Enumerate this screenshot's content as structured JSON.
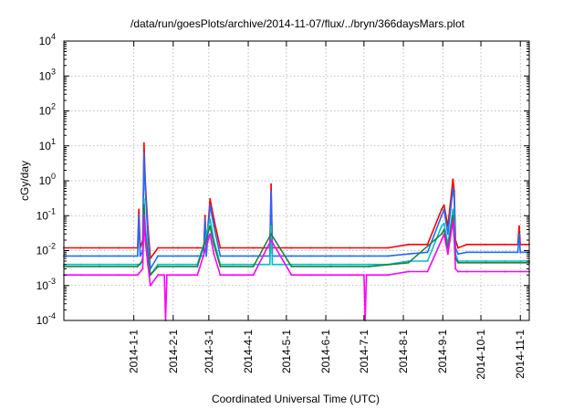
{
  "chart_data": {
    "type": "line",
    "title": "/data/run/goesPlots/archive/2014-11-07/flux/../bryn/366daysMars.plot",
    "xlabel": "Coordinated Universal Time (UTC)",
    "ylabel": "cGy/day",
    "yscale": "log",
    "ylim": [
      0.0001,
      10000
    ],
    "xlim": [
      "2013-11-07",
      "2014-11-08"
    ],
    "grid": true,
    "legend": "none",
    "y_ticks": [
      {
        "base": "10",
        "exp": "-4",
        "value": 0.0001
      },
      {
        "base": "10",
        "exp": "-3",
        "value": 0.001
      },
      {
        "base": "10",
        "exp": "-2",
        "value": 0.01
      },
      {
        "base": "10",
        "exp": "-1",
        "value": 0.1
      },
      {
        "base": "10",
        "exp": "0",
        "value": 1
      },
      {
        "base": "10",
        "exp": "1",
        "value": 10
      },
      {
        "base": "10",
        "exp": "2",
        "value": 100
      },
      {
        "base": "10",
        "exp": "3",
        "value": 1000
      },
      {
        "base": "10",
        "exp": "4",
        "value": 10000
      }
    ],
    "x_ticks": [
      "2014-1-1",
      "2014-2-1",
      "2014-3-1",
      "2014-4-1",
      "2014-5-1",
      "2014-6-1",
      "2014-7-1",
      "2014-8-1",
      "2014-9-1",
      "2014-10-1",
      "2014-11-1"
    ],
    "series": [
      {
        "color": "#ff0000",
        "x": [
          "2013-11-07",
          "2013-11-20",
          "2013-12-05",
          "2013-12-20",
          "2014-01-04",
          "2014-01-05",
          "2014-01-06",
          "2014-01-08",
          "2014-01-09",
          "2014-01-10",
          "2014-01-12",
          "2014-01-14",
          "2014-01-20",
          "2014-02-05",
          "2014-02-20",
          "2014-02-25",
          "2014-02-26",
          "2014-02-27",
          "2014-03-02",
          "2014-03-05",
          "2014-03-10",
          "2014-03-20",
          "2014-04-05",
          "2014-04-18",
          "2014-04-19",
          "2014-04-20",
          "2014-05-05",
          "2014-05-20",
          "2014-06-05",
          "2014-06-20",
          "2014-07-05",
          "2014-07-20",
          "2014-08-05",
          "2014-08-20",
          "2014-08-31",
          "2014-09-02",
          "2014-09-05",
          "2014-09-09",
          "2014-09-10",
          "2014-09-11",
          "2014-09-13",
          "2014-09-20",
          "2014-10-05",
          "2014-10-20",
          "2014-10-30",
          "2014-10-31",
          "2014-11-01",
          "2014-11-08"
        ],
        "values": [
          0.012,
          0.012,
          0.012,
          0.012,
          0.012,
          0.15,
          0.012,
          0.02,
          12,
          1.0,
          0.05,
          0.006,
          0.012,
          0.012,
          0.012,
          0.012,
          0.1,
          0.012,
          0.3,
          0.08,
          0.012,
          0.012,
          0.012,
          0.012,
          0.8,
          0.012,
          0.012,
          0.012,
          0.012,
          0.012,
          0.012,
          0.012,
          0.015,
          0.015,
          0.15,
          0.2,
          0.05,
          1.1,
          0.5,
          0.02,
          0.012,
          0.015,
          0.015,
          0.015,
          0.015,
          0.05,
          0.015,
          0.015
        ]
      },
      {
        "color": "#1e6cff",
        "x": [
          "2013-11-07",
          "2013-11-20",
          "2013-12-05",
          "2013-12-20",
          "2014-01-04",
          "2014-01-05",
          "2014-01-06",
          "2014-01-08",
          "2014-01-09",
          "2014-01-10",
          "2014-01-12",
          "2014-01-14",
          "2014-01-20",
          "2014-02-05",
          "2014-02-20",
          "2014-02-25",
          "2014-02-26",
          "2014-02-27",
          "2014-03-02",
          "2014-03-05",
          "2014-03-10",
          "2014-03-20",
          "2014-04-05",
          "2014-04-18",
          "2014-04-19",
          "2014-04-20",
          "2014-05-05",
          "2014-05-20",
          "2014-06-05",
          "2014-06-20",
          "2014-07-05",
          "2014-07-20",
          "2014-08-05",
          "2014-08-20",
          "2014-08-31",
          "2014-09-02",
          "2014-09-05",
          "2014-09-09",
          "2014-09-10",
          "2014-09-11",
          "2014-09-13",
          "2014-09-20",
          "2014-10-05",
          "2014-10-20",
          "2014-10-30",
          "2014-10-31",
          "2014-11-01",
          "2014-11-08"
        ],
        "values": [
          0.007,
          0.007,
          0.007,
          0.007,
          0.007,
          0.1,
          0.007,
          0.01,
          6,
          0.6,
          0.03,
          0.003,
          0.007,
          0.007,
          0.007,
          0.007,
          0.08,
          0.007,
          0.2,
          0.05,
          0.007,
          0.007,
          0.007,
          0.007,
          0.5,
          0.007,
          0.007,
          0.007,
          0.007,
          0.007,
          0.007,
          0.007,
          0.008,
          0.009,
          0.1,
          0.15,
          0.03,
          0.6,
          0.3,
          0.012,
          0.008,
          0.009,
          0.009,
          0.009,
          0.009,
          0.03,
          0.009,
          0.009
        ]
      },
      {
        "color": "#00c0c0",
        "x": [
          "2013-11-07",
          "2013-11-20",
          "2013-12-05",
          "2013-12-20",
          "2014-01-04",
          "2014-01-06",
          "2014-01-08",
          "2014-01-09",
          "2014-01-10",
          "2014-01-12",
          "2014-01-14",
          "2014-01-20",
          "2014-02-05",
          "2014-02-20",
          "2014-02-26",
          "2014-03-02",
          "2014-03-05",
          "2014-03-10",
          "2014-03-20",
          "2014-04-05",
          "2014-04-18",
          "2014-04-19",
          "2014-04-20",
          "2014-05-05",
          "2014-05-20",
          "2014-06-05",
          "2014-06-20",
          "2014-07-05",
          "2014-07-20",
          "2014-08-05",
          "2014-08-20",
          "2014-08-31",
          "2014-09-02",
          "2014-09-05",
          "2014-09-09",
          "2014-09-10",
          "2014-09-11",
          "2014-09-13",
          "2014-09-20",
          "2014-10-05",
          "2014-10-20",
          "2014-11-01",
          "2014-11-08"
        ],
        "values": [
          0.004,
          0.004,
          0.004,
          0.004,
          0.004,
          0.004,
          0.006,
          0.3,
          0.05,
          0.01,
          0.002,
          0.004,
          0.004,
          0.004,
          0.02,
          0.08,
          0.02,
          0.004,
          0.004,
          0.004,
          0.004,
          0.05,
          0.004,
          0.004,
          0.004,
          0.004,
          0.004,
          0.004,
          0.004,
          0.005,
          0.005,
          0.05,
          0.06,
          0.015,
          0.15,
          0.06,
          0.008,
          0.005,
          0.005,
          0.005,
          0.005,
          0.005,
          0.005
        ]
      },
      {
        "color": "#208040",
        "x": [
          "2013-11-07",
          "2013-12-05",
          "2014-01-04",
          "2014-01-08",
          "2014-01-09",
          "2014-01-10",
          "2014-01-12",
          "2014-01-14",
          "2014-01-20",
          "2014-02-20",
          "2014-03-02",
          "2014-03-05",
          "2014-03-10",
          "2014-04-05",
          "2014-04-19",
          "2014-05-05",
          "2014-06-05",
          "2014-07-05",
          "2014-08-05",
          "2014-08-31",
          "2014-09-02",
          "2014-09-05",
          "2014-09-09",
          "2014-09-10",
          "2014-09-11",
          "2014-09-13",
          "2014-10-05",
          "2014-11-08"
        ],
        "values": [
          0.0035,
          0.0035,
          0.0035,
          0.005,
          0.2,
          0.03,
          0.008,
          0.002,
          0.0035,
          0.0035,
          0.05,
          0.015,
          0.0035,
          0.0035,
          0.03,
          0.0035,
          0.0035,
          0.0035,
          0.0045,
          0.03,
          0.04,
          0.012,
          0.1,
          0.04,
          0.006,
          0.0045,
          0.0045,
          0.0045
        ]
      },
      {
        "color": "#ff00ff",
        "x": [
          "2013-11-07",
          "2013-11-20",
          "2013-12-05",
          "2013-12-20",
          "2014-01-04",
          "2014-01-08",
          "2014-01-09",
          "2014-01-10",
          "2014-01-12",
          "2014-01-14",
          "2014-01-20",
          "2014-01-25",
          "2014-01-26",
          "2014-01-27",
          "2014-02-05",
          "2014-02-20",
          "2014-02-26",
          "2014-03-02",
          "2014-03-05",
          "2014-03-10",
          "2014-03-20",
          "2014-04-05",
          "2014-04-19",
          "2014-05-05",
          "2014-05-20",
          "2014-06-05",
          "2014-06-20",
          "2014-07-01",
          "2014-07-02",
          "2014-07-03",
          "2014-07-20",
          "2014-08-05",
          "2014-08-20",
          "2014-08-31",
          "2014-09-02",
          "2014-09-05",
          "2014-09-09",
          "2014-09-10",
          "2014-09-11",
          "2014-09-13",
          "2014-09-20",
          "2014-10-05",
          "2014-10-20",
          "2014-11-01",
          "2014-11-08"
        ],
        "values": [
          0.002,
          0.002,
          0.002,
          0.002,
          0.002,
          0.003,
          0.1,
          0.02,
          0.004,
          0.001,
          0.002,
          0.002,
          0.0001,
          0.002,
          0.002,
          0.002,
          0.01,
          0.03,
          0.008,
          0.002,
          0.002,
          0.002,
          0.02,
          0.002,
          0.002,
          0.002,
          0.002,
          0.002,
          0.0001,
          0.002,
          0.002,
          0.0025,
          0.0025,
          0.02,
          0.03,
          0.008,
          0.07,
          0.02,
          0.003,
          0.0025,
          0.0025,
          0.0025,
          0.0025,
          0.0025,
          0.0025
        ]
      }
    ]
  }
}
